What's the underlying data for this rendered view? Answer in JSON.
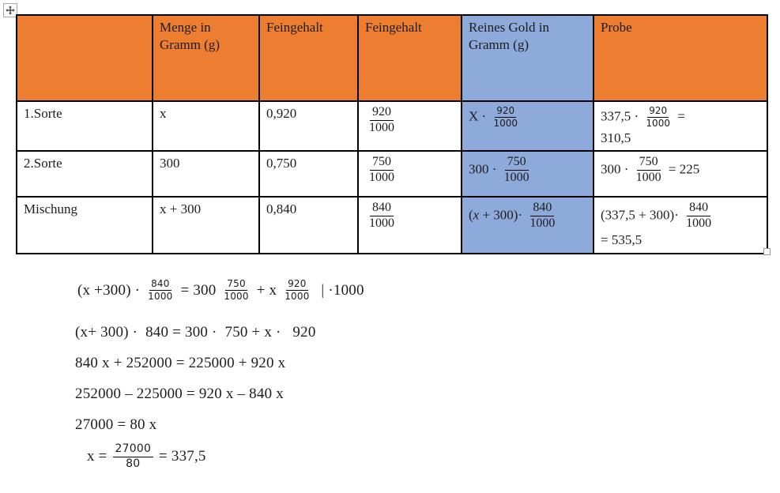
{
  "colors": {
    "header_orange": "#ED7D31",
    "highlight_blue": "#8EAADB",
    "border_black": "#000000"
  },
  "icons": {
    "move_handle": "table-move-handle-arrows",
    "resize_handle": "table-resize-handle-square"
  },
  "table": {
    "headers": [
      {
        "label": ""
      },
      {
        "label": "Menge in Gramm (g)"
      },
      {
        "label": "Feingehalt"
      },
      {
        "label": "Feingehalt"
      },
      {
        "label": "Reines Gold in Gramm (g)"
      },
      {
        "label": "Probe"
      }
    ],
    "rows": [
      {
        "label": "1.Sorte",
        "menge": "x",
        "feingehalt": "0,920",
        "feingehalt_frac": [
          {
            "frac": [
              "920",
              "1000"
            ]
          }
        ],
        "reines_gold": [
          {
            "text": "X · "
          },
          {
            "frac": [
              "920",
              "1000"
            ],
            "size": "sm"
          }
        ],
        "probe_line1": [
          {
            "text": "337,5 · "
          },
          {
            "frac": [
              "920",
              "1000"
            ],
            "size": "sm"
          },
          {
            "text": " ="
          }
        ],
        "probe_line2": "310,5"
      },
      {
        "label": "2.Sorte",
        "menge": "300",
        "feingehalt": "0,750",
        "feingehalt_frac": [
          {
            "frac": [
              "750",
              "1000"
            ]
          }
        ],
        "reines_gold": [
          {
            "text": "300 · "
          },
          {
            "frac": [
              "750",
              "1000"
            ]
          }
        ],
        "probe_line1": [
          {
            "text": "300 · "
          },
          {
            "frac": [
              "750",
              "1000"
            ]
          },
          {
            "text": " = 225"
          }
        ],
        "probe_line2": ""
      },
      {
        "label": "Mischung",
        "menge": "x + 300",
        "feingehalt": "0,840",
        "feingehalt_frac": [
          {
            "frac": [
              "840",
              "1000"
            ]
          }
        ],
        "reines_gold": [
          {
            "text": "("
          },
          {
            "text": "x",
            "italic": true
          },
          {
            "text": " + 300)· "
          },
          {
            "frac": [
              "840",
              "1000"
            ]
          }
        ],
        "probe_line1": [
          {
            "text": "(337,5 + 300)· "
          },
          {
            "frac": [
              "840",
              "1000"
            ]
          }
        ],
        "probe_line2": "= 535,5"
      }
    ]
  },
  "equations": [
    {
      "segs": [
        {
          "text": "(x +300) · "
        },
        {
          "frac": [
            "840",
            "1000"
          ],
          "size": "sm"
        },
        {
          "text": " = 300 "
        },
        {
          "frac": [
            "750",
            "1000"
          ],
          "size": "sm"
        },
        {
          "text": " + x "
        },
        {
          "frac": [
            "920",
            "1000"
          ],
          "size": "sm"
        },
        {
          "text": "  | ·1000"
        }
      ]
    },
    {
      "segs": [
        {
          "text": "(x+ 300) ·  840 = 300 ·  750 + x ·   920"
        }
      ]
    },
    {
      "segs": [
        {
          "text": "840 x + 252000 = 225000 + 920 x"
        }
      ]
    },
    {
      "segs": [
        {
          "text": "252000 – 225000 = 920 x – 840 x"
        }
      ]
    },
    {
      "segs": [
        {
          "text": "27000 = 80 x"
        }
      ]
    },
    {
      "segs": [
        {
          "text": "x = "
        },
        {
          "frac": [
            "27000",
            "80"
          ],
          "size": "md"
        },
        {
          "text": " = 337,5"
        }
      ]
    }
  ]
}
